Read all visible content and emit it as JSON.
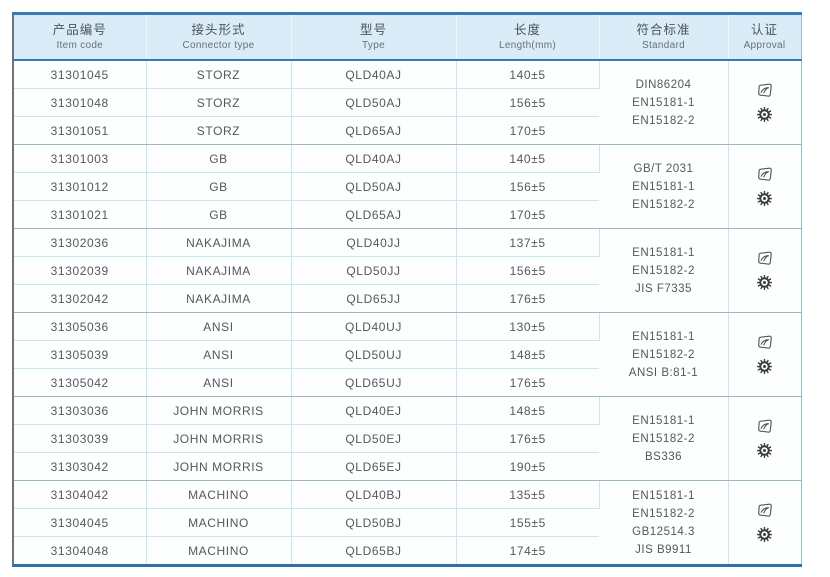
{
  "colors": {
    "accent_blue": "#3779ba",
    "bottom_border_blue": "#2f70ad",
    "header_bg": "#d9ecf8",
    "grid_line_blue": "#c8e7f4",
    "group_separator": "#9db6c3",
    "text": "#55585c"
  },
  "icons": {
    "approval_logo": "swoosh-stamp",
    "approval_wheel": "gear-wheel-badge"
  },
  "table": {
    "columns": [
      {
        "zh": "产品编号",
        "en": "Item code"
      },
      {
        "zh": "接头形式",
        "en": "Connector type"
      },
      {
        "zh": "型号",
        "en": "Type"
      },
      {
        "zh": "长度",
        "en": "Length(mm)"
      },
      {
        "zh": "符合标准",
        "en": "Standard"
      },
      {
        "zh": "认证",
        "en": "Approval"
      }
    ],
    "groups": [
      {
        "rows": [
          {
            "item_code": "31301045",
            "connector_type": "STORZ",
            "type": "QLD40AJ",
            "length": "140±5"
          },
          {
            "item_code": "31301048",
            "connector_type": "STORZ",
            "type": "QLD50AJ",
            "length": "156±5"
          },
          {
            "item_code": "31301051",
            "connector_type": "STORZ",
            "type": "QLD65AJ",
            "length": "170±5"
          }
        ],
        "standards": [
          "DIN86204",
          "EN15181-1",
          "EN15182-2"
        ]
      },
      {
        "rows": [
          {
            "item_code": "31301003",
            "connector_type": "GB",
            "type": "QLD40AJ",
            "length": "140±5"
          },
          {
            "item_code": "31301012",
            "connector_type": "GB",
            "type": "QLD50AJ",
            "length": "156±5"
          },
          {
            "item_code": "31301021",
            "connector_type": "GB",
            "type": "QLD65AJ",
            "length": "170±5"
          }
        ],
        "standards": [
          "GB/T 2031",
          "EN15181-1",
          "EN15182-2"
        ]
      },
      {
        "rows": [
          {
            "item_code": "31302036",
            "connector_type": "NAKAJIMA",
            "type": "QLD40JJ",
            "length": "137±5"
          },
          {
            "item_code": "31302039",
            "connector_type": "NAKAJIMA",
            "type": "QLD50JJ",
            "length": "156±5"
          },
          {
            "item_code": "31302042",
            "connector_type": "NAKAJIMA",
            "type": "QLD65JJ",
            "length": "176±5"
          }
        ],
        "standards": [
          "EN15181-1",
          "EN15182-2",
          "JIS F7335"
        ]
      },
      {
        "rows": [
          {
            "item_code": "31305036",
            "connector_type": "ANSI",
            "type": "QLD40UJ",
            "length": "130±5"
          },
          {
            "item_code": "31305039",
            "connector_type": "ANSI",
            "type": "QLD50UJ",
            "length": "148±5"
          },
          {
            "item_code": "31305042",
            "connector_type": "ANSI",
            "type": "QLD65UJ",
            "length": "176±5"
          }
        ],
        "standards": [
          "EN15181-1",
          "EN15182-2",
          "ANSI B:81-1"
        ]
      },
      {
        "rows": [
          {
            "item_code": "31303036",
            "connector_type": "JOHN MORRIS",
            "type": "QLD40EJ",
            "length": "148±5"
          },
          {
            "item_code": "31303039",
            "connector_type": "JOHN MORRIS",
            "type": "QLD50EJ",
            "length": "176±5"
          },
          {
            "item_code": "31303042",
            "connector_type": "JOHN MORRIS",
            "type": "QLD65EJ",
            "length": "190±5"
          }
        ],
        "standards": [
          "EN15181-1",
          "EN15182-2",
          "BS336"
        ]
      },
      {
        "rows": [
          {
            "item_code": "31304042",
            "connector_type": "MACHINO",
            "type": "QLD40BJ",
            "length": "135±5"
          },
          {
            "item_code": "31304045",
            "connector_type": "MACHINO",
            "type": "QLD50BJ",
            "length": "155±5"
          },
          {
            "item_code": "31304048",
            "connector_type": "MACHINO",
            "type": "QLD65BJ",
            "length": "174±5"
          }
        ],
        "standards": [
          "EN15181-1",
          "EN15182-2",
          "GB12514.3",
          "JIS B9911"
        ]
      }
    ]
  }
}
